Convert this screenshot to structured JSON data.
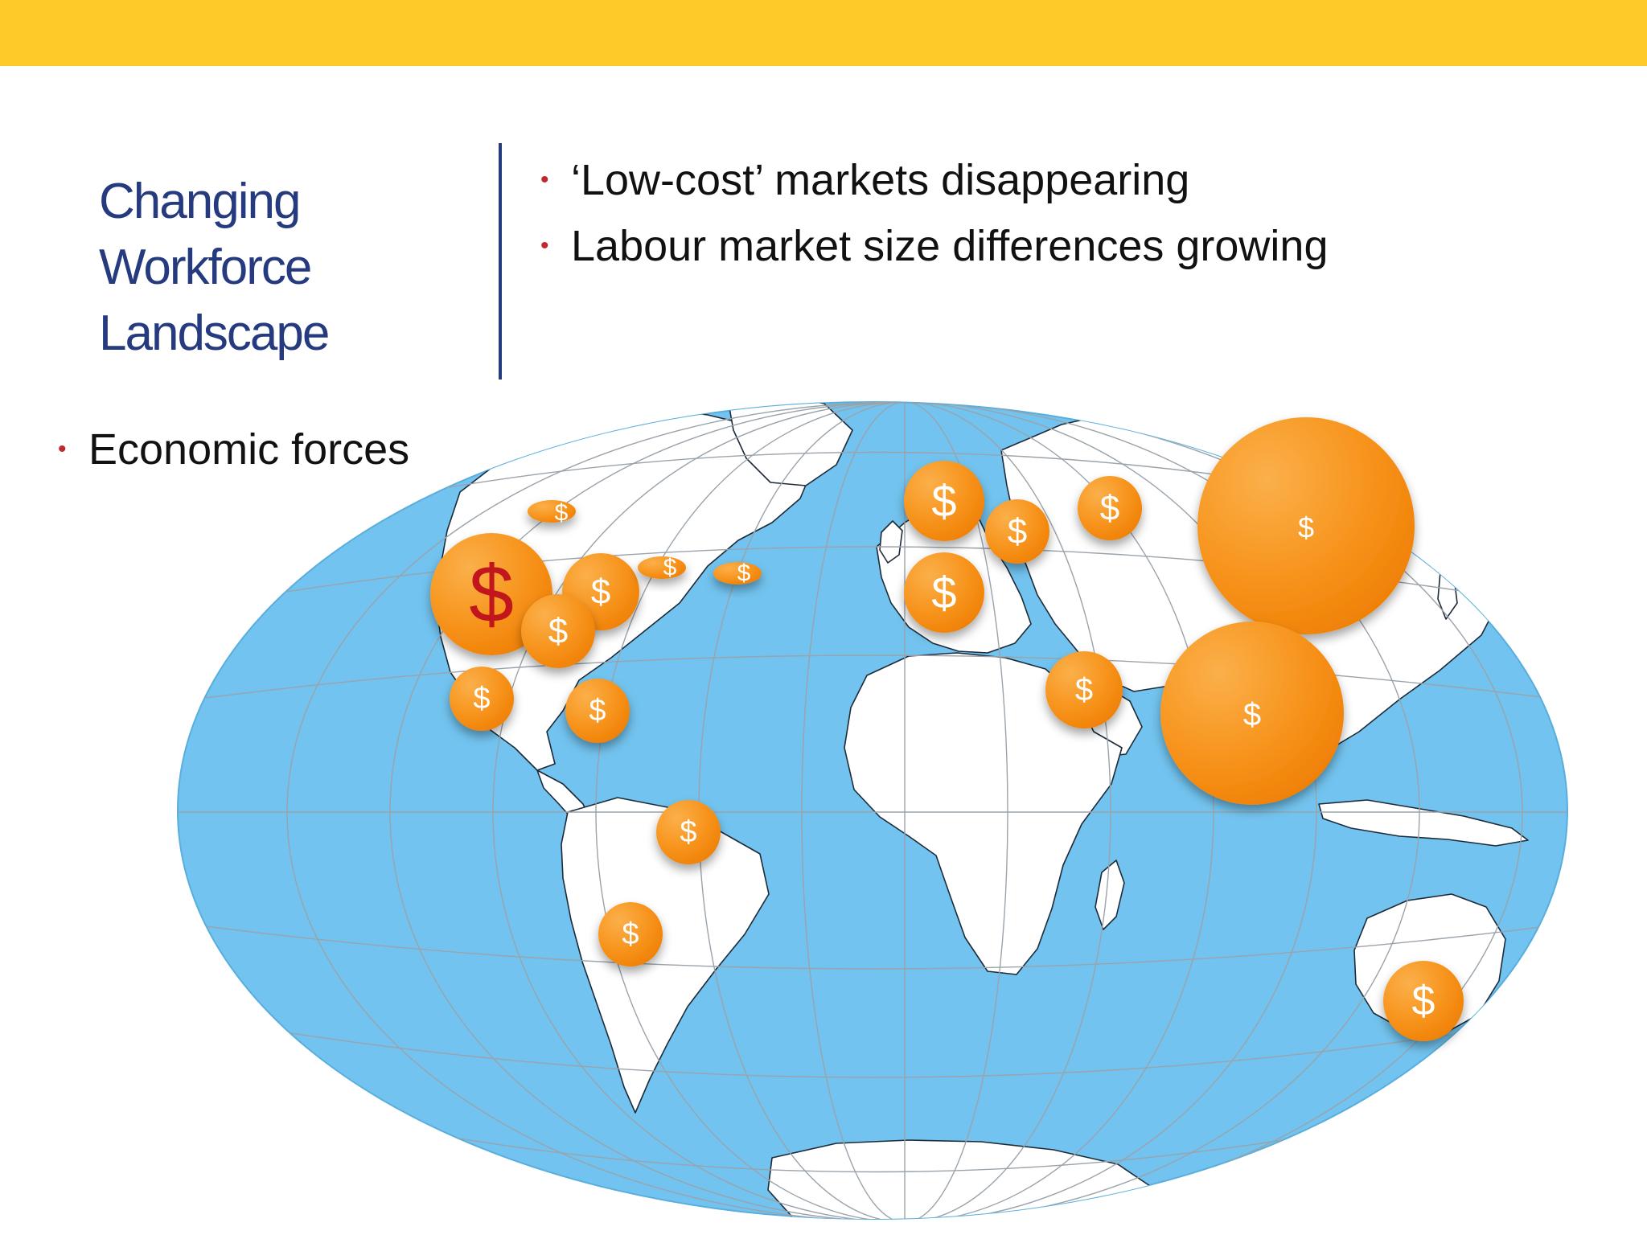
{
  "slide": {
    "title": "Changing Workforce Landscape",
    "bullets_right": [
      "‘Low-cost’ markets disappearing",
      "Labour market size differences growing"
    ],
    "bullets_left": [
      "Economic forces"
    ]
  },
  "colors": {
    "top_bar": "#fdca2a",
    "title": "#263b7f",
    "bullet_dot": "#c0282d",
    "ocean": "#72c3ef",
    "land": "#ffffff",
    "coin": "#f7941d",
    "coin_symbol": "#ffffff",
    "coin_symbol_highlight": "#c1121f"
  },
  "map": {
    "projection": "pseudo-elliptical world map",
    "markers": [
      {
        "name": "marker-canada-west",
        "region": "Western Canada",
        "symbol": "$",
        "size": "small",
        "shape": "flat"
      },
      {
        "name": "marker-usa-west",
        "region": "Western United States",
        "symbol": "$",
        "size": "large",
        "highlight": true
      },
      {
        "name": "marker-usa-central",
        "region": "Central United States",
        "symbol": "$",
        "size": "medium"
      },
      {
        "name": "marker-usa-east",
        "region": "Eastern United States",
        "symbol": "$",
        "size": "medium"
      },
      {
        "name": "marker-canada-east",
        "region": "Eastern Canada",
        "symbol": "$",
        "size": "small",
        "shape": "flat"
      },
      {
        "name": "marker-newfoundland",
        "region": "Newfoundland",
        "symbol": "$",
        "size": "small",
        "shape": "flat"
      },
      {
        "name": "marker-mexico",
        "region": "Mexico",
        "symbol": "$",
        "size": "medium"
      },
      {
        "name": "marker-caribbean",
        "region": "Caribbean",
        "symbol": "$",
        "size": "medium"
      },
      {
        "name": "marker-brazil",
        "region": "Brazil",
        "symbol": "$",
        "size": "medium"
      },
      {
        "name": "marker-chile-argentina",
        "region": "Southern South America",
        "symbol": "$",
        "size": "medium"
      },
      {
        "name": "marker-scandinavia",
        "region": "Scandinavia",
        "symbol": "$",
        "size": "medium"
      },
      {
        "name": "marker-eastern-europe",
        "region": "Eastern Europe",
        "symbol": "$",
        "size": "medium"
      },
      {
        "name": "marker-russia",
        "region": "Russia",
        "symbol": "$",
        "size": "medium"
      },
      {
        "name": "marker-western-europe",
        "region": "Western Europe",
        "symbol": "$",
        "size": "medium"
      },
      {
        "name": "marker-middle-east",
        "region": "Middle East",
        "symbol": "$",
        "size": "medium"
      },
      {
        "name": "marker-china",
        "region": "China",
        "symbol": "$",
        "size": "very-large"
      },
      {
        "name": "marker-india",
        "region": "India",
        "symbol": "$",
        "size": "very-large"
      },
      {
        "name": "marker-australia",
        "region": "Australia",
        "symbol": "$",
        "size": "medium"
      }
    ]
  }
}
